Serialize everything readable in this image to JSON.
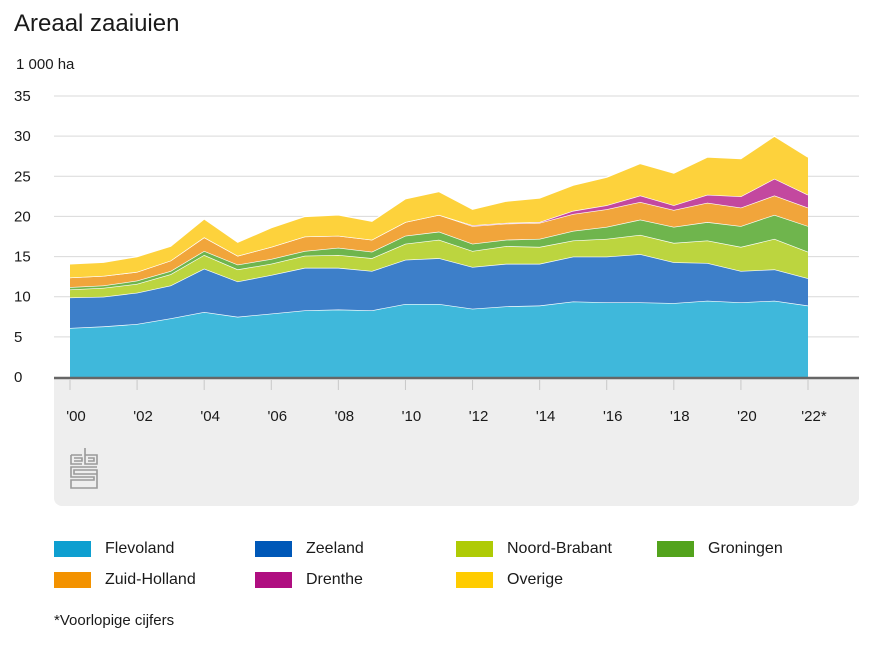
{
  "header": {
    "title": "Areaal zaaiuien",
    "unit": "1 000 ha"
  },
  "footnote": "*Voorlopige cijfers",
  "logo": {
    "icon": "cbs-logo-icon"
  },
  "chart_data": {
    "type": "area",
    "stacked": true,
    "title": "Areaal zaaiuien",
    "ylabel": "1 000 ha",
    "xlabel": "",
    "ylim": [
      0,
      35
    ],
    "yticks": [
      0,
      5,
      10,
      15,
      20,
      25,
      30,
      35
    ],
    "grid": true,
    "legend_position": "bottom",
    "x": [
      "2000",
      "2001",
      "2002",
      "2003",
      "2004",
      "2005",
      "2006",
      "2007",
      "2008",
      "2009",
      "2010",
      "2011",
      "2012",
      "2013",
      "2014",
      "2015",
      "2016",
      "2017",
      "2018",
      "2019",
      "2020",
      "2021",
      "2022*"
    ],
    "xtick_labels": [
      "'00",
      "'02",
      "'04",
      "'06",
      "'08",
      "'10",
      "'12",
      "'14",
      "'16",
      "'18",
      "'20",
      "'22*"
    ],
    "xtick_indices": [
      0,
      2,
      4,
      6,
      8,
      10,
      12,
      14,
      16,
      18,
      20,
      22
    ],
    "series": [
      {
        "name": "Flevoland",
        "color": "#3fb8db",
        "values": [
          6.1,
          6.3,
          6.6,
          7.3,
          8.1,
          7.5,
          7.9,
          8.3,
          8.4,
          8.3,
          9.1,
          9.1,
          8.5,
          8.8,
          8.9,
          9.4,
          9.3,
          9.3,
          9.2,
          9.5,
          9.3,
          9.5,
          8.9
        ]
      },
      {
        "name": "Zeeland",
        "color": "#3d7fc9",
        "values": [
          3.8,
          3.7,
          3.9,
          4.1,
          5.4,
          4.4,
          4.8,
          5.3,
          5.2,
          4.9,
          5.5,
          5.7,
          5.2,
          5.3,
          5.2,
          5.6,
          5.7,
          6.0,
          5.1,
          4.7,
          3.9,
          3.9,
          3.4
        ]
      },
      {
        "name": "Noord-Brabant",
        "color": "#bcd53f",
        "values": [
          1.0,
          1.1,
          1.1,
          1.4,
          1.7,
          1.5,
          1.4,
          1.5,
          1.6,
          1.6,
          2.0,
          2.3,
          2.0,
          2.2,
          2.1,
          2.0,
          2.2,
          2.4,
          2.4,
          2.8,
          3.0,
          3.8,
          3.3
        ]
      },
      {
        "name": "Groningen",
        "color": "#6fb54d",
        "values": [
          0.3,
          0.3,
          0.4,
          0.4,
          0.5,
          0.6,
          0.6,
          0.6,
          0.9,
          0.8,
          1.0,
          1.0,
          0.9,
          0.8,
          1.0,
          1.2,
          1.5,
          1.9,
          2.0,
          2.3,
          2.6,
          3.0,
          3.2
        ]
      },
      {
        "name": "Zuid-Holland",
        "color": "#f1a53b",
        "values": [
          1.2,
          1.2,
          1.1,
          1.3,
          1.7,
          1.1,
          1.5,
          1.8,
          1.5,
          1.5,
          1.7,
          2.1,
          2.2,
          2.0,
          2.0,
          2.1,
          2.2,
          2.2,
          2.1,
          2.4,
          2.3,
          2.4,
          2.3
        ]
      },
      {
        "name": "Drenthe",
        "color": "#c3489f",
        "values": [
          0,
          0,
          0,
          0,
          0,
          0,
          0,
          0,
          0,
          0,
          0,
          0,
          0.1,
          0.1,
          0.1,
          0.4,
          0.5,
          0.8,
          0.6,
          1.0,
          1.4,
          2.1,
          1.6
        ]
      },
      {
        "name": "Overige",
        "color": "#fdd23c",
        "values": [
          1.7,
          1.7,
          1.9,
          1.8,
          2.3,
          1.7,
          2.4,
          2.5,
          2.6,
          2.3,
          2.9,
          2.9,
          2.0,
          2.7,
          3.0,
          3.2,
          3.5,
          4.0,
          4.0,
          4.7,
          4.7,
          5.3,
          4.7
        ]
      }
    ]
  },
  "legend": [
    {
      "label": "Flevoland",
      "color": "#0e9fd0"
    },
    {
      "label": "Zeeland",
      "color": "#0058b8"
    },
    {
      "label": "Noord-Brabant",
      "color": "#afcb05"
    },
    {
      "label": "Groningen",
      "color": "#53a31d"
    },
    {
      "label": "Zuid-Holland",
      "color": "#f39200"
    },
    {
      "label": "Drenthe",
      "color": "#af0e80"
    },
    {
      "label": "Overige",
      "color": "#ffcc00"
    }
  ]
}
